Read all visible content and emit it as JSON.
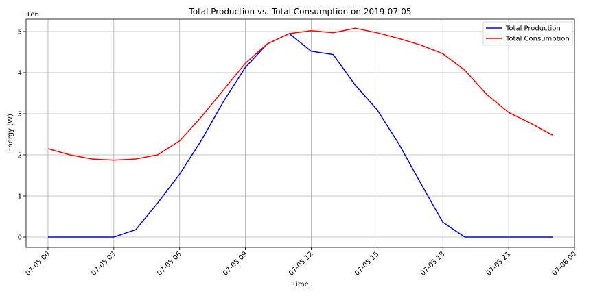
{
  "chart_data": {
    "type": "line",
    "title": "Total Production vs. Total Consumption on 2019-07-05",
    "xlabel": "Time",
    "ylabel": "Energy (W)",
    "y_scale_label": "1e6",
    "x_hours": [
      0,
      1,
      2,
      3,
      4,
      5,
      6,
      7,
      8,
      9,
      10,
      11,
      12,
      13,
      14,
      15,
      16,
      17,
      18,
      19,
      20,
      21,
      22,
      23
    ],
    "xlim_hours": [
      -1,
      24
    ],
    "ylim": [
      -250000,
      5300000
    ],
    "x_ticks": [
      {
        "hour": 0,
        "label": "07-05 00"
      },
      {
        "hour": 3,
        "label": "07-05 03"
      },
      {
        "hour": 6,
        "label": "07-05 06"
      },
      {
        "hour": 9,
        "label": "07-05 09"
      },
      {
        "hour": 12,
        "label": "07-05 12"
      },
      {
        "hour": 15,
        "label": "07-05 15"
      },
      {
        "hour": 18,
        "label": "07-05 18"
      },
      {
        "hour": 21,
        "label": "07-05 21"
      },
      {
        "hour": 24,
        "label": "07-06 00"
      }
    ],
    "y_ticks": [
      {
        "value": 0,
        "label": "0"
      },
      {
        "value": 1000000,
        "label": "1"
      },
      {
        "value": 2000000,
        "label": "2"
      },
      {
        "value": 3000000,
        "label": "3"
      },
      {
        "value": 4000000,
        "label": "4"
      },
      {
        "value": 5000000,
        "label": "5"
      }
    ],
    "grid": true,
    "legend_position": "top-right",
    "series": [
      {
        "name": "Total Production",
        "color": "#0000ff",
        "values": [
          0,
          0,
          0,
          0,
          180000,
          830000,
          1530000,
          2360000,
          3300000,
          4130000,
          4700000,
          4950000,
          4520000,
          4440000,
          3700000,
          3100000,
          2260000,
          1300000,
          360000,
          0,
          0,
          0,
          0,
          0
        ]
      },
      {
        "name": "Total Consumption",
        "color": "#ff0000",
        "values": [
          2150000,
          2000000,
          1900000,
          1870000,
          1900000,
          2000000,
          2340000,
          2930000,
          3580000,
          4230000,
          4700000,
          4950000,
          5020000,
          4970000,
          5080000,
          4970000,
          4830000,
          4670000,
          4460000,
          4060000,
          3470000,
          3030000,
          2770000,
          2480000
        ]
      }
    ]
  }
}
